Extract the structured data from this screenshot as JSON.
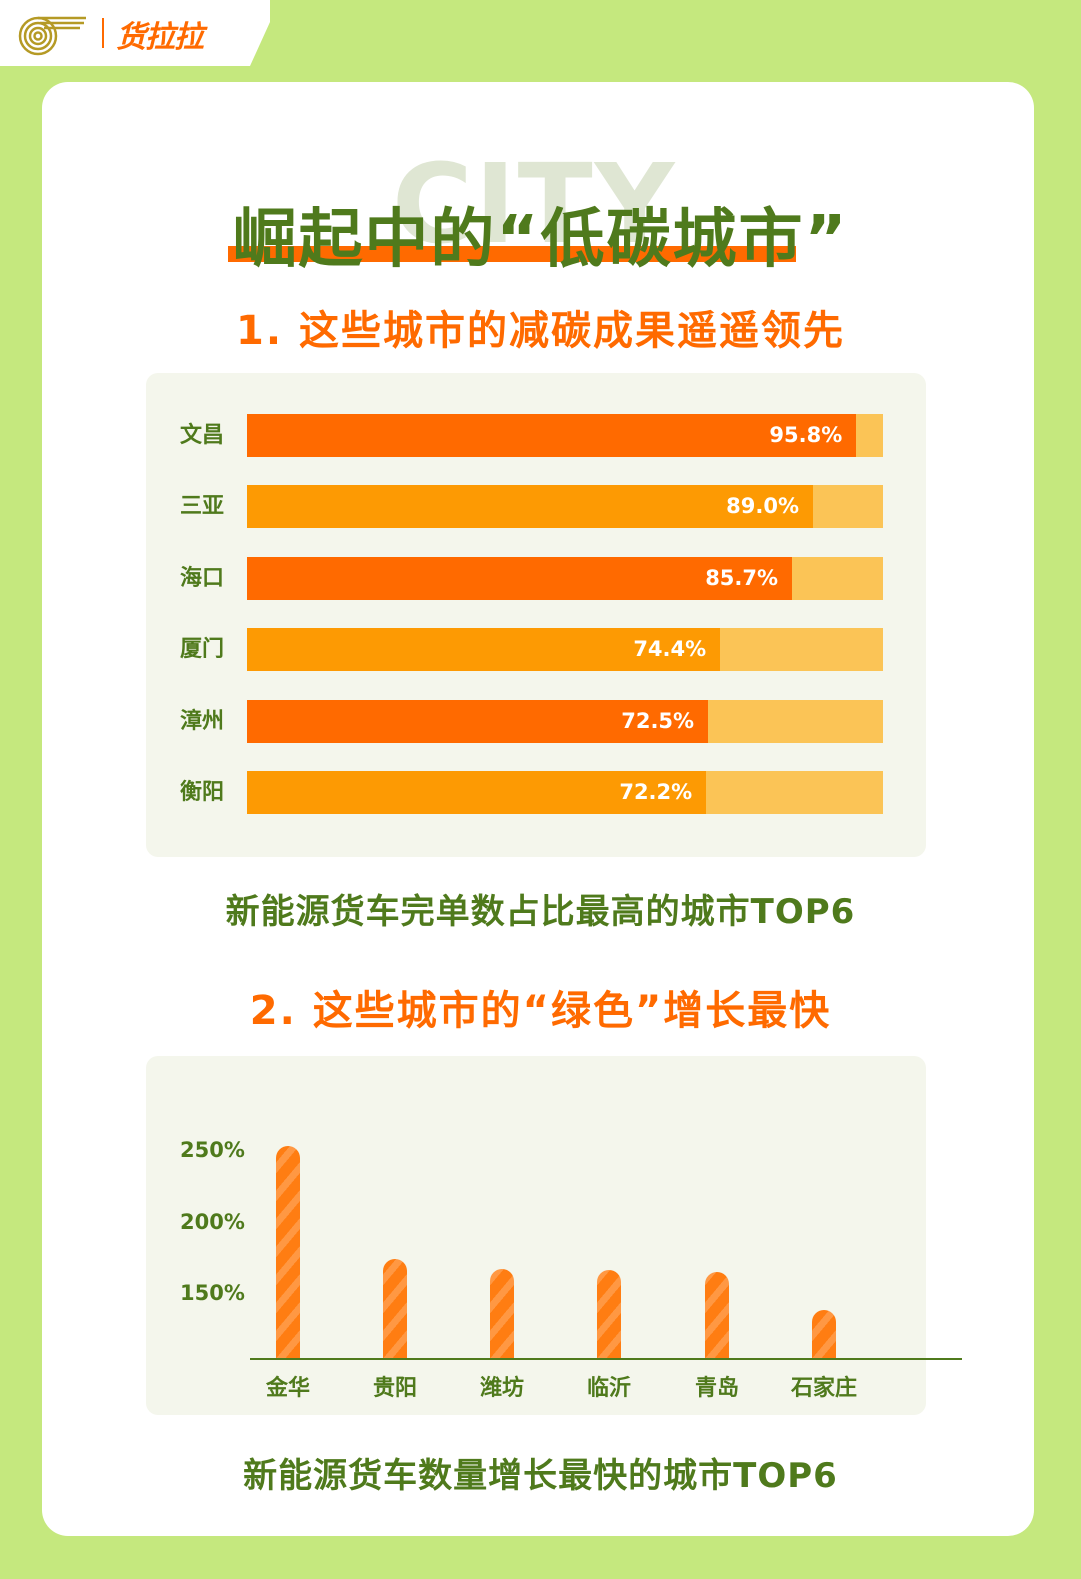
{
  "brand": {
    "name": "货拉拉",
    "logo_icon": "swirl-logo-icon"
  },
  "header": {
    "background_word": "CITY",
    "title": "崛起中的“低碳城市”"
  },
  "section1": {
    "title": "1. 这些城市的减碳成果遥遥领先",
    "caption": "新能源货车完单数占比最高的城市TOP6"
  },
  "section2": {
    "title": "2. 这些城市的“绿色”增长最快",
    "caption": "新能源货车数量增长最快的城市TOP6"
  },
  "colors": {
    "green_text": "#4f7a1c",
    "orange_primary": "#ff6a00",
    "orange_secondary": "#fd9a03",
    "bar_track": "#fbc456",
    "page_bg": "#c5e87e",
    "panel_bg": "#f4f6ec"
  },
  "chart_data": [
    {
      "type": "bar",
      "orientation": "horizontal",
      "title": "新能源货车完单数占比最高的城市TOP6",
      "categories": [
        "文昌",
        "三亚",
        "海口",
        "厦门",
        "漳州",
        "衡阳"
      ],
      "values": [
        95.8,
        89.0,
        85.7,
        74.4,
        72.5,
        72.2
      ],
      "value_labels": [
        "95.8%",
        "89.0%",
        "85.7%",
        "74.4%",
        "72.5%",
        "72.2%"
      ],
      "xlim": [
        0,
        100
      ],
      "unit": "%",
      "grid": false
    },
    {
      "type": "bar",
      "orientation": "vertical",
      "title": "新能源货车数量增长最快的城市TOP6",
      "categories": [
        "金华",
        "贵阳",
        "潍坊",
        "临沂",
        "青岛",
        "石家庄"
      ],
      "values": [
        253,
        174,
        167,
        166,
        165,
        138
      ],
      "y_ticks": [
        "250%",
        "200%",
        "150%"
      ],
      "ylabel": "",
      "xlabel": "",
      "unit": "%",
      "grid": false
    }
  ]
}
